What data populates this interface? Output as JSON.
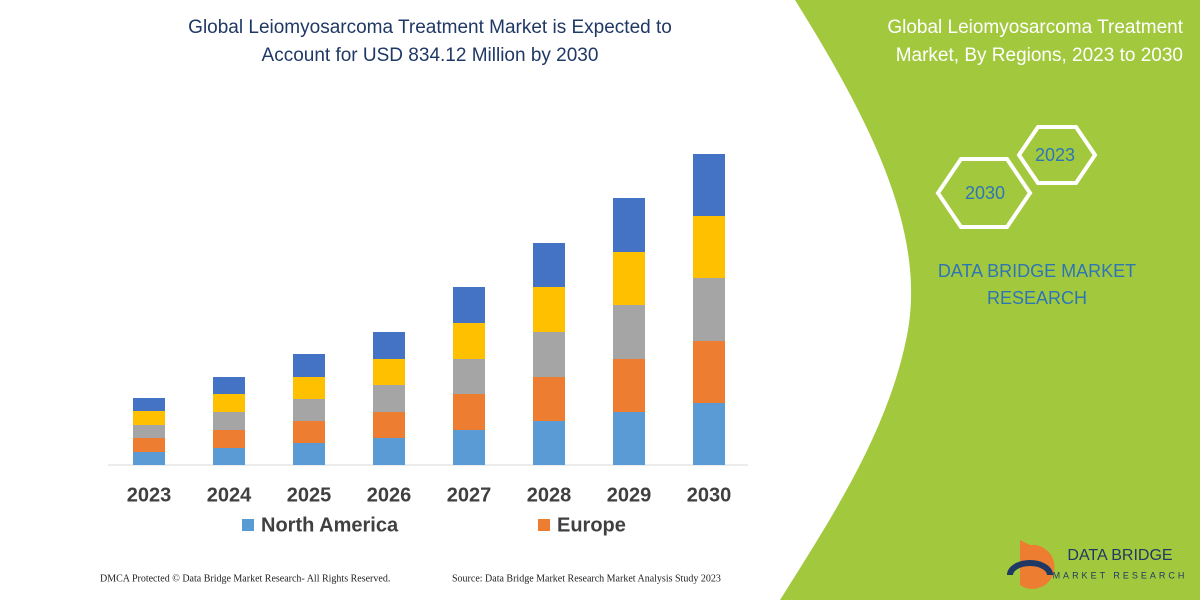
{
  "chart_data": {
    "type": "stacked-bar",
    "title": [
      "Global Leiomyosarcoma Treatment Market is Expected to",
      "Account for USD 834.12 Million by 2030"
    ],
    "categories": [
      "2023",
      "2024",
      "2025",
      "2026",
      "2027",
      "2028",
      "2029",
      "2030"
    ],
    "series": [
      {
        "name": "North America",
        "color": "#5b9bd5",
        "values": [
          13,
          17,
          22,
          27,
          35,
          44,
          53,
          62
        ]
      },
      {
        "name": "Europe",
        "color": "#ed7d31",
        "values": [
          14,
          18,
          22,
          26,
          36,
          44,
          53,
          62
        ]
      },
      {
        "color": "#a5a5a5",
        "values": [
          13,
          18,
          22,
          27,
          35,
          45,
          54,
          63
        ]
      },
      {
        "color": "#ffc000",
        "values": [
          14,
          18,
          22,
          26,
          36,
          45,
          53,
          62
        ]
      },
      {
        "color": "#4472c4",
        "values": [
          13,
          17,
          23,
          27,
          36,
          44,
          54,
          62
        ]
      }
    ],
    "ylim": [
      0,
      330
    ]
  },
  "panel": {
    "title": [
      "Global Leiomyosarcoma Treatment",
      "Market, By Regions, 2023 to 2030"
    ],
    "hex_years": [
      "2023",
      "2030"
    ],
    "brand": [
      "DATA BRIDGE MARKET",
      "RESEARCH"
    ]
  },
  "footer": {
    "left": "DMCA Protected © Data Bridge Market Research-  All Rights Reserved.",
    "right": "Source: Data Bridge Market Research  Market Analysis Study 2023"
  },
  "logo": {
    "name": "DATA BRIDGE",
    "tagline": "MARKET RESEARCH"
  }
}
